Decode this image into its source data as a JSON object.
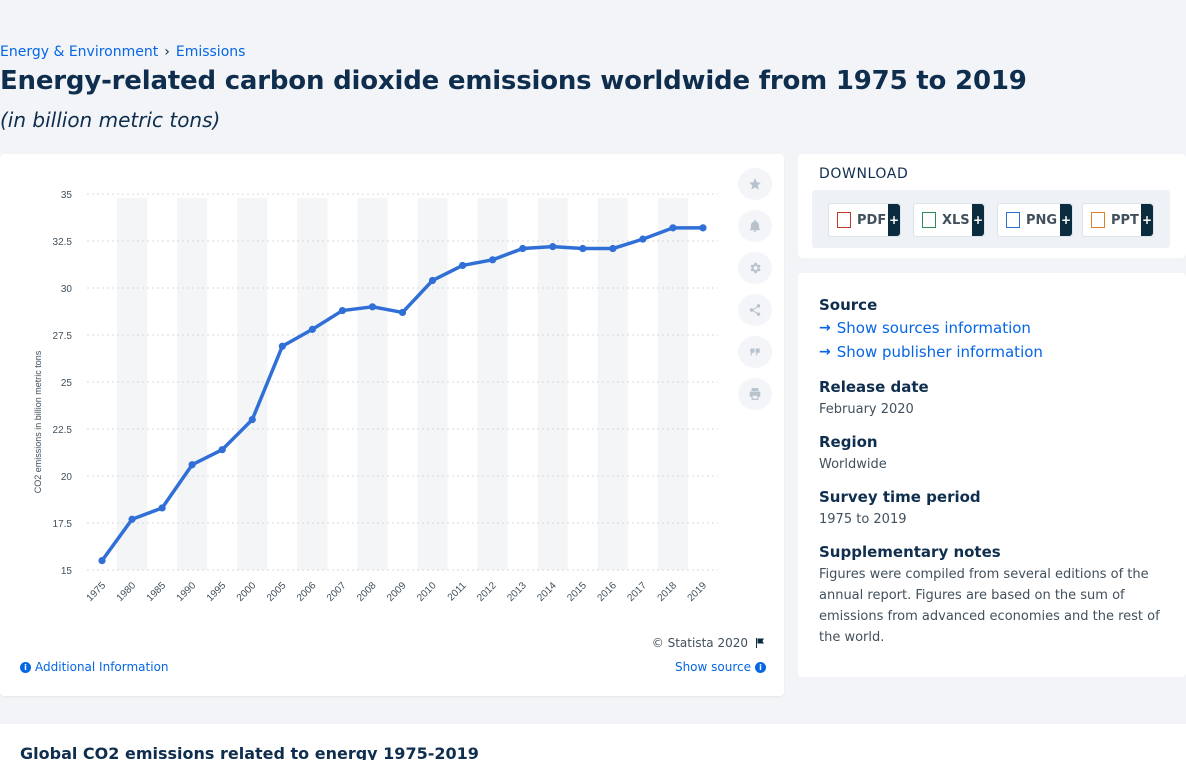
{
  "breadcrumb": [
    "Energy & Environment",
    "Emissions"
  ],
  "page_title": "Energy-related carbon dioxide emissions worldwide from 1975 to 2019",
  "page_subtitle": "(in billion metric tons)",
  "chart_data": {
    "type": "line",
    "title": "",
    "xlabel": "",
    "ylabel": "CO2 emissions in billion metric tons",
    "categories": [
      "1975",
      "1980",
      "1985",
      "1990",
      "1995",
      "2000",
      "2005",
      "2006",
      "2007",
      "2008",
      "2009",
      "2010",
      "2011",
      "2012",
      "2013",
      "2014",
      "2015",
      "2016",
      "2017",
      "2018",
      "2019"
    ],
    "series": [
      {
        "name": "",
        "values": [
          15.5,
          17.7,
          18.3,
          20.6,
          21.4,
          23.0,
          26.9,
          27.8,
          28.8,
          29.0,
          28.7,
          30.4,
          31.2,
          31.5,
          32.1,
          32.2,
          32.1,
          32.1,
          32.6,
          33.2,
          33.2
        ]
      }
    ],
    "ylim": [
      15,
      35
    ],
    "yticks": [
      15,
      17.5,
      20,
      22.5,
      25,
      27.5,
      30,
      32.5,
      35
    ],
    "ytick_labels": [
      "15",
      "17.5",
      "20",
      "22.5",
      "25",
      "27.5",
      "30",
      "32.5",
      "35"
    ],
    "grid": true,
    "color": "#2f6fd6"
  },
  "copyright": "© Statista 2020",
  "additional_info": "Additional Information",
  "show_source": "Show source",
  "download": {
    "title": "DOWNLOAD",
    "buttons": [
      "PDF",
      "XLS",
      "PNG",
      "PPT"
    ],
    "plus": "+"
  },
  "meta": {
    "source_heading": "Source",
    "show_sources": "Show sources information",
    "show_publisher": "Show publisher information",
    "release_heading": "Release date",
    "release_value": "February 2020",
    "region_heading": "Region",
    "region_value": "Worldwide",
    "survey_heading": "Survey time period",
    "survey_value": "1975 to 2019",
    "notes_heading": "Supplementary notes",
    "notes_lines": [
      "Figures were compiled from several editions of the",
      "annual report. Figures are based on the sum of",
      "emissions from advanced economies and the rest of",
      "the world."
    ]
  },
  "bottom_title": "Global CO2 emissions related to energy 1975-2019"
}
